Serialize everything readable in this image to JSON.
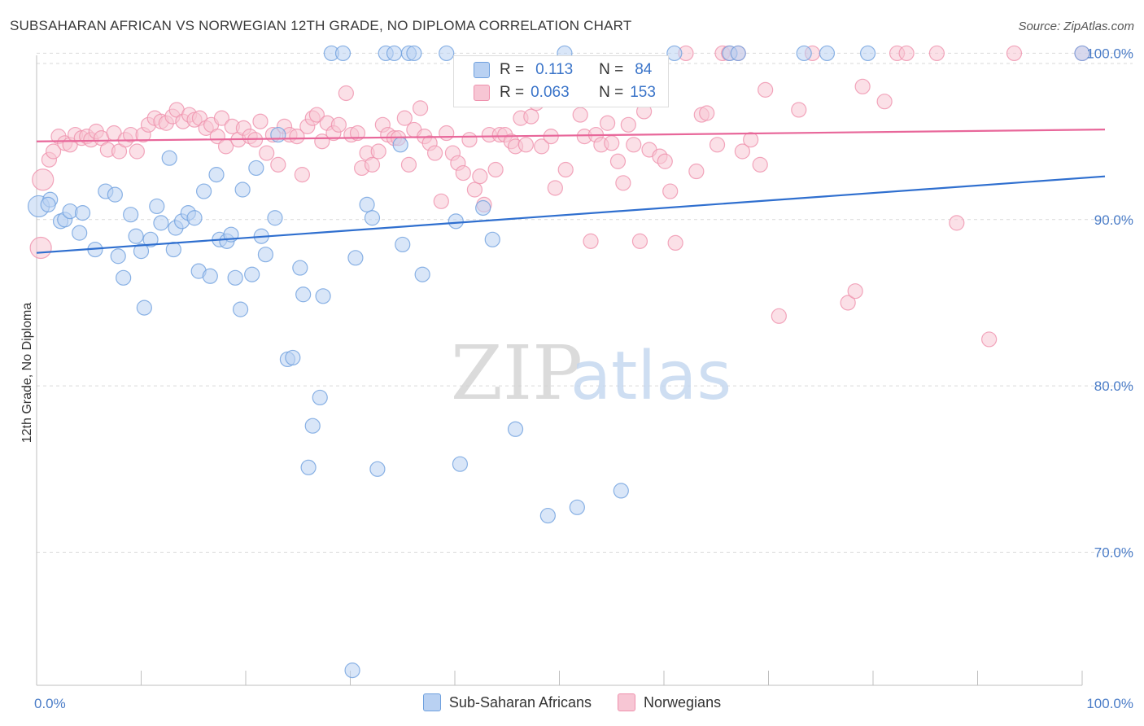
{
  "header": {
    "title": "SUBSAHARAN AFRICAN VS NORWEGIAN 12TH GRADE, NO DIPLOMA CORRELATION CHART",
    "source": "Source: ZipAtlas.com"
  },
  "legend": {
    "r_label": "R =",
    "n_label": "N =",
    "rows": [
      {
        "r": "0.113",
        "n": "84"
      },
      {
        "r": "0.063",
        "n": "153"
      }
    ]
  },
  "colors": {
    "blue": "#6fa0de",
    "blue_fill": "#b9d1f2",
    "blue_line": "#2f6fcf",
    "pink": "#ef91ad",
    "pink_fill": "#f7c6d4",
    "pink_line": "#e8679a"
  },
  "chart_data": {
    "type": "scatter",
    "title": "SUBSAHARAN AFRICAN VS NORWEGIAN 12TH GRADE, NO DIPLOMA CORRELATION CHART",
    "ylabel": "12th Grade, No Diploma",
    "xlim": [
      0,
      100
    ],
    "ylim": [
      62,
      101
    ],
    "x_tick_labels": [
      "0.0%",
      "100.0%"
    ],
    "y_ticks": [
      70,
      80,
      90,
      100
    ],
    "y_tick_labels": [
      "70.0%",
      "80.0%",
      "90.0%",
      "100.0%"
    ],
    "grid": true,
    "watermark": "ZIPatlas",
    "series": [
      {
        "name": "Sub-Saharan Africans",
        "trend": [
          [
            0,
            88.0
          ],
          [
            100,
            92.5
          ]
        ],
        "points": [
          [
            0.2,
            90.8
          ],
          [
            1.3,
            91.2
          ],
          [
            1.1,
            90.9
          ],
          [
            2.3,
            89.9
          ],
          [
            2.7,
            90.0
          ],
          [
            3.2,
            90.5
          ],
          [
            4.1,
            89.2
          ],
          [
            4.4,
            90.4
          ],
          [
            5.6,
            88.2
          ],
          [
            6.6,
            91.7
          ],
          [
            7.5,
            91.5
          ],
          [
            7.8,
            87.8
          ],
          [
            8.3,
            86.5
          ],
          [
            9.0,
            90.3
          ],
          [
            9.5,
            89.0
          ],
          [
            10.0,
            88.1
          ],
          [
            10.3,
            84.7
          ],
          [
            10.9,
            88.8
          ],
          [
            11.5,
            90.8
          ],
          [
            11.9,
            89.8
          ],
          [
            12.7,
            93.7
          ],
          [
            13.1,
            88.2
          ],
          [
            13.3,
            89.5
          ],
          [
            13.9,
            89.9
          ],
          [
            14.5,
            90.4
          ],
          [
            15.1,
            90.1
          ],
          [
            15.5,
            86.9
          ],
          [
            16.0,
            91.7
          ],
          [
            16.6,
            86.6
          ],
          [
            17.2,
            92.7
          ],
          [
            17.5,
            88.8
          ],
          [
            18.2,
            88.7
          ],
          [
            18.6,
            89.1
          ],
          [
            19.0,
            86.5
          ],
          [
            19.5,
            84.6
          ],
          [
            19.7,
            91.8
          ],
          [
            20.6,
            86.7
          ],
          [
            21.0,
            93.1
          ],
          [
            21.5,
            89.0
          ],
          [
            21.9,
            87.9
          ],
          [
            22.8,
            90.1
          ],
          [
            23.1,
            95.1
          ],
          [
            24.0,
            81.6
          ],
          [
            24.5,
            81.7
          ],
          [
            25.2,
            87.1
          ],
          [
            25.5,
            85.5
          ],
          [
            26.0,
            75.1
          ],
          [
            26.4,
            77.6
          ],
          [
            27.1,
            79.3
          ],
          [
            27.4,
            85.4
          ],
          [
            28.2,
            100.0
          ],
          [
            29.3,
            100.0
          ],
          [
            30.2,
            62.9
          ],
          [
            30.5,
            87.7
          ],
          [
            31.6,
            90.9
          ],
          [
            32.1,
            90.1
          ],
          [
            32.6,
            75.0
          ],
          [
            33.4,
            100.0
          ],
          [
            34.2,
            100.0
          ],
          [
            34.8,
            94.5
          ],
          [
            35.0,
            88.5
          ],
          [
            35.6,
            100.0
          ],
          [
            36.1,
            100.0
          ],
          [
            36.9,
            86.7
          ],
          [
            39.2,
            100.0
          ],
          [
            40.1,
            89.9
          ],
          [
            40.5,
            75.3
          ],
          [
            42.7,
            90.7
          ],
          [
            43.6,
            88.8
          ],
          [
            45.8,
            77.4
          ],
          [
            48.9,
            72.2
          ],
          [
            50.5,
            100.0
          ],
          [
            51.5,
            99.0
          ],
          [
            51.7,
            72.7
          ],
          [
            55.9,
            73.7
          ],
          [
            61.0,
            100.0
          ],
          [
            66.3,
            100.0
          ],
          [
            67.1,
            100.0
          ],
          [
            73.4,
            100.0
          ],
          [
            75.6,
            100.0
          ],
          [
            79.5,
            100.0
          ],
          [
            100.0,
            100.0
          ]
        ]
      },
      {
        "name": "Norwegians",
        "trend": [
          [
            0,
            94.7
          ],
          [
            100,
            95.4
          ]
        ],
        "points": [
          [
            0.4,
            88.3
          ],
          [
            0.6,
            92.4
          ],
          [
            1.2,
            93.6
          ],
          [
            1.6,
            94.1
          ],
          [
            2.1,
            95.0
          ],
          [
            2.7,
            94.6
          ],
          [
            3.2,
            94.5
          ],
          [
            3.7,
            95.1
          ],
          [
            4.3,
            94.9
          ],
          [
            4.8,
            95.0
          ],
          [
            5.2,
            94.8
          ],
          [
            5.7,
            95.3
          ],
          [
            6.2,
            94.9
          ],
          [
            6.8,
            94.2
          ],
          [
            7.4,
            95.2
          ],
          [
            7.9,
            94.1
          ],
          [
            8.5,
            94.8
          ],
          [
            9.0,
            95.1
          ],
          [
            9.6,
            94.1
          ],
          [
            10.2,
            95.1
          ],
          [
            10.7,
            95.7
          ],
          [
            11.3,
            96.1
          ],
          [
            11.9,
            95.9
          ],
          [
            12.4,
            95.8
          ],
          [
            13.0,
            96.2
          ],
          [
            13.4,
            96.6
          ],
          [
            14.0,
            95.9
          ],
          [
            14.6,
            96.3
          ],
          [
            15.1,
            96.0
          ],
          [
            15.6,
            96.1
          ],
          [
            16.2,
            95.5
          ],
          [
            16.7,
            95.7
          ],
          [
            17.3,
            95.0
          ],
          [
            17.7,
            96.1
          ],
          [
            18.1,
            94.4
          ],
          [
            18.7,
            95.6
          ],
          [
            19.3,
            94.8
          ],
          [
            19.8,
            95.5
          ],
          [
            20.4,
            95.0
          ],
          [
            20.9,
            94.8
          ],
          [
            21.4,
            95.9
          ],
          [
            22.0,
            94.0
          ],
          [
            22.6,
            95.1
          ],
          [
            23.1,
            93.3
          ],
          [
            23.7,
            95.6
          ],
          [
            24.2,
            95.1
          ],
          [
            24.9,
            95.0
          ],
          [
            25.4,
            92.7
          ],
          [
            25.9,
            95.6
          ],
          [
            26.4,
            96.1
          ],
          [
            26.8,
            96.3
          ],
          [
            27.3,
            94.7
          ],
          [
            27.8,
            95.8
          ],
          [
            28.4,
            95.2
          ],
          [
            28.9,
            95.7
          ],
          [
            29.6,
            97.6
          ],
          [
            30.1,
            95.1
          ],
          [
            30.7,
            95.2
          ],
          [
            31.1,
            93.1
          ],
          [
            31.6,
            94.0
          ],
          [
            32.1,
            93.3
          ],
          [
            32.7,
            94.1
          ],
          [
            33.1,
            95.7
          ],
          [
            33.6,
            95.1
          ],
          [
            34.2,
            94.9
          ],
          [
            34.6,
            94.9
          ],
          [
            35.2,
            96.1
          ],
          [
            35.6,
            93.3
          ],
          [
            36.1,
            95.4
          ],
          [
            36.7,
            96.7
          ],
          [
            37.1,
            95.0
          ],
          [
            37.6,
            94.6
          ],
          [
            38.1,
            94.0
          ],
          [
            38.7,
            91.1
          ],
          [
            39.2,
            95.2
          ],
          [
            39.8,
            94.0
          ],
          [
            40.3,
            93.4
          ],
          [
            40.8,
            92.8
          ],
          [
            41.4,
            94.8
          ],
          [
            41.9,
            91.8
          ],
          [
            42.4,
            92.6
          ],
          [
            42.8,
            90.9
          ],
          [
            43.3,
            95.1
          ],
          [
            43.9,
            93.0
          ],
          [
            44.3,
            95.1
          ],
          [
            44.8,
            95.1
          ],
          [
            45.4,
            94.7
          ],
          [
            45.8,
            94.4
          ],
          [
            46.3,
            96.1
          ],
          [
            46.8,
            94.5
          ],
          [
            47.3,
            96.2
          ],
          [
            47.8,
            97.0
          ],
          [
            48.3,
            94.4
          ],
          [
            48.7,
            97.6
          ],
          [
            49.2,
            95.0
          ],
          [
            49.6,
            91.9
          ],
          [
            50.6,
            93.0
          ],
          [
            51.5,
            97.5
          ],
          [
            52.0,
            96.3
          ],
          [
            52.4,
            95.0
          ],
          [
            53.0,
            88.7
          ],
          [
            53.5,
            95.1
          ],
          [
            54.0,
            94.5
          ],
          [
            54.6,
            95.8
          ],
          [
            55.0,
            94.6
          ],
          [
            55.6,
            93.5
          ],
          [
            56.1,
            92.2
          ],
          [
            56.6,
            95.7
          ],
          [
            57.1,
            94.5
          ],
          [
            57.7,
            88.7
          ],
          [
            58.1,
            96.5
          ],
          [
            58.6,
            94.2
          ],
          [
            59.6,
            93.8
          ],
          [
            60.1,
            93.5
          ],
          [
            60.6,
            91.7
          ],
          [
            61.1,
            88.6
          ],
          [
            62.1,
            100.0
          ],
          [
            63.1,
            92.9
          ],
          [
            63.6,
            96.3
          ],
          [
            64.1,
            96.4
          ],
          [
            65.1,
            94.5
          ],
          [
            65.6,
            100.0
          ],
          [
            66.2,
            100.0
          ],
          [
            67.1,
            100.0
          ],
          [
            67.5,
            94.1
          ],
          [
            68.3,
            94.8
          ],
          [
            69.2,
            93.3
          ],
          [
            69.7,
            97.8
          ],
          [
            71.0,
            84.2
          ],
          [
            72.9,
            96.6
          ],
          [
            74.2,
            100.0
          ],
          [
            77.6,
            85.0
          ],
          [
            78.3,
            85.7
          ],
          [
            79.0,
            98.0
          ],
          [
            81.1,
            97.1
          ],
          [
            82.3,
            100.0
          ],
          [
            83.2,
            100.0
          ],
          [
            86.1,
            100.0
          ],
          [
            88.0,
            89.8
          ],
          [
            91.1,
            82.8
          ],
          [
            93.5,
            100.0
          ],
          [
            100.0,
            100.0
          ]
        ]
      }
    ]
  },
  "bottom_legend": {
    "items": [
      "Sub-Saharan Africans",
      "Norwegians"
    ]
  }
}
